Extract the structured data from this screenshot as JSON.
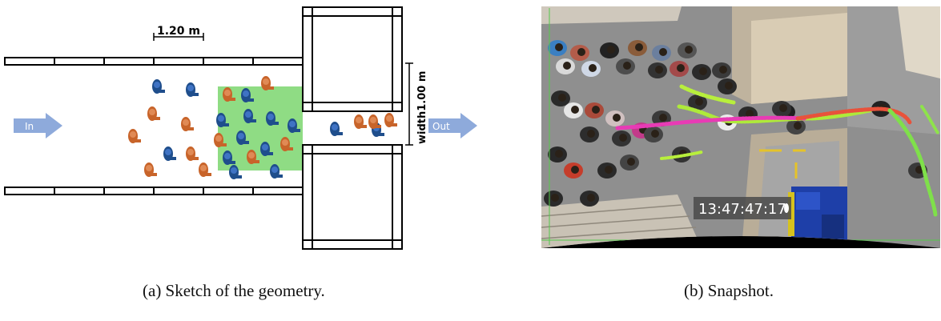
{
  "sketch": {
    "dimension_label": "1.20 m",
    "width_label_prefix": "width",
    "width_label_value": "1.00 m",
    "arrow_in_label": "In",
    "arrow_out_label": "Out",
    "colors": {
      "blue_person": "#1f4e8c",
      "orange_person": "#c8642a",
      "green_zone": "#8fdc84",
      "arrow": "#8eaadb"
    }
  },
  "snapshot": {
    "timestamp": "13:47:47:17"
  },
  "captions": {
    "a": "(a) Sketch of the geometry.",
    "b": "(b) Snapshot."
  }
}
